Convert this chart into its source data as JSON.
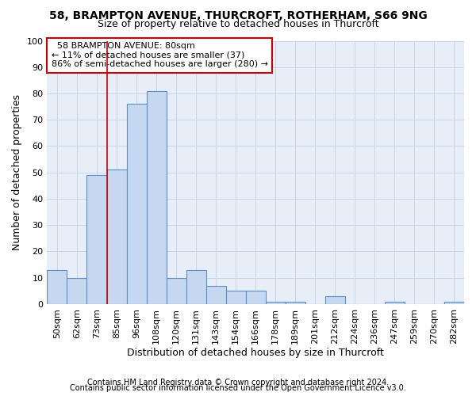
{
  "title1": "58, BRAMPTON AVENUE, THURCROFT, ROTHERHAM, S66 9NG",
  "title2": "Size of property relative to detached houses in Thurcroft",
  "xlabel": "Distribution of detached houses by size in Thurcroft",
  "ylabel": "Number of detached properties",
  "footer1": "Contains HM Land Registry data © Crown copyright and database right 2024.",
  "footer2": "Contains public sector information licensed under the Open Government Licence v3.0.",
  "annotation_line1": "58 BRAMPTON AVENUE: 80sqm",
  "annotation_line2": "← 11% of detached houses are smaller (37)",
  "annotation_line3": "86% of semi-detached houses are larger (280) →",
  "bar_labels": [
    "50sqm",
    "62sqm",
    "73sqm",
    "85sqm",
    "96sqm",
    "108sqm",
    "120sqm",
    "131sqm",
    "143sqm",
    "154sqm",
    "166sqm",
    "178sqm",
    "189sqm",
    "201sqm",
    "212sqm",
    "224sqm",
    "236sqm",
    "247sqm",
    "259sqm",
    "270sqm",
    "282sqm"
  ],
  "bar_values": [
    13,
    10,
    49,
    51,
    76,
    81,
    10,
    13,
    7,
    5,
    5,
    1,
    1,
    0,
    3,
    0,
    0,
    1,
    0,
    0,
    1
  ],
  "bar_color": "#c5d8f0",
  "bar_edge_color": "#5b8fc9",
  "vline_x": 3.0,
  "vline_color": "#cc0000",
  "ylim": [
    0,
    100
  ],
  "yticks": [
    0,
    10,
    20,
    30,
    40,
    50,
    60,
    70,
    80,
    90,
    100
  ],
  "grid_color": "#c8d4e8",
  "background_color": "#e8eef8",
  "annotation_box_color": "#ffffff",
  "annotation_box_edge": "#cc0000",
  "title1_fontsize": 10,
  "title2_fontsize": 9,
  "axis_label_fontsize": 9,
  "tick_fontsize": 8,
  "annotation_fontsize": 8,
  "footer_fontsize": 7
}
